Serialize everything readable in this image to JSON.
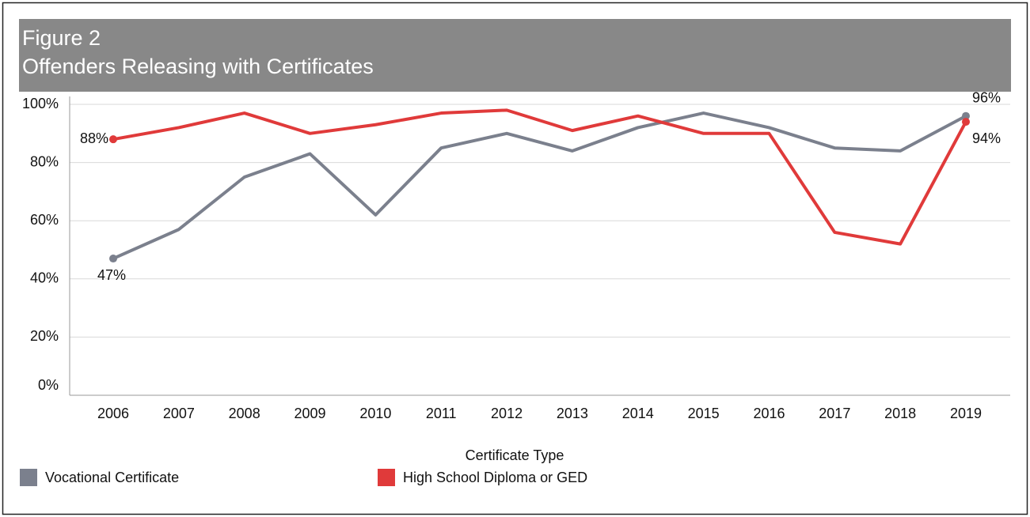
{
  "chart_data": {
    "type": "line",
    "title": "Figure 2",
    "subtitle": "Offenders Releasing with Certificates",
    "x_label": "Certificate Type",
    "categories": [
      "2006",
      "2007",
      "2008",
      "2009",
      "2010",
      "2011",
      "2012",
      "2013",
      "2014",
      "2015",
      "2016",
      "2017",
      "2018",
      "2019"
    ],
    "series": [
      {
        "name": "Vocational Certificate",
        "color": "#7b808d",
        "values": [
          47,
          57,
          75,
          83,
          62,
          85,
          90,
          84,
          92,
          97,
          92,
          85,
          84,
          96
        ],
        "value_labels": [
          "47%",
          null,
          null,
          null,
          null,
          null,
          null,
          null,
          null,
          null,
          null,
          null,
          null,
          "96%"
        ]
      },
      {
        "name": "High School Diploma or GED",
        "color": "#e03a3a",
        "values": [
          88,
          92,
          97,
          90,
          93,
          97,
          98,
          91,
          96,
          90,
          90,
          56,
          52,
          94
        ],
        "value_labels": [
          "88%",
          null,
          null,
          null,
          null,
          null,
          null,
          null,
          null,
          null,
          null,
          null,
          null,
          "94%"
        ]
      }
    ],
    "ylim": [
      0,
      100
    ],
    "yticks": [
      {
        "value": 0,
        "label": "0%"
      },
      {
        "value": 20,
        "label": "20%"
      },
      {
        "value": 40,
        "label": "40%"
      },
      {
        "value": 60,
        "label": "60%"
      },
      {
        "value": 80,
        "label": "80%"
      },
      {
        "value": 100,
        "label": "100%"
      }
    ],
    "grid": true
  }
}
